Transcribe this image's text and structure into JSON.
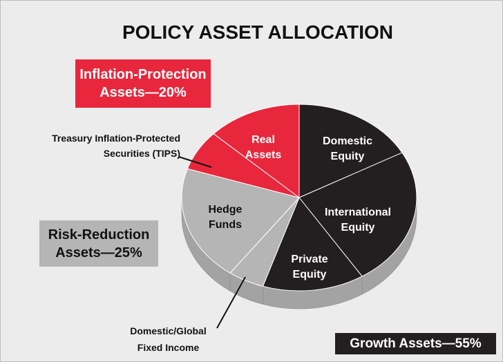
{
  "chart_data": {
    "type": "pie3d",
    "title": "POLICY ASSET ALLOCATION",
    "categories": [
      "Domestic Equity",
      "International Equity",
      "Private Equity",
      "Domestic/Global Fixed Income",
      "Hedge Funds",
      "Treasury Inflation-Protected Securities (TIPS)",
      "Real Assets"
    ],
    "values": [
      17,
      24,
      14,
      5,
      20,
      7,
      13
    ],
    "colors": [
      "#231f20",
      "#231f20",
      "#231f20",
      "#b5b5b5",
      "#b5b5b5",
      "#e8273c",
      "#e8273c"
    ],
    "side_color": "#a3a3a3",
    "groups": [
      {
        "label": "Inflation-Protection Assets—20%",
        "color": "#e8273c"
      },
      {
        "label": "Risk-Reduction Assets—25%",
        "color": "#b5b5b5"
      },
      {
        "label": "Growth Assets—55%",
        "color": "#231f20"
      }
    ]
  }
}
